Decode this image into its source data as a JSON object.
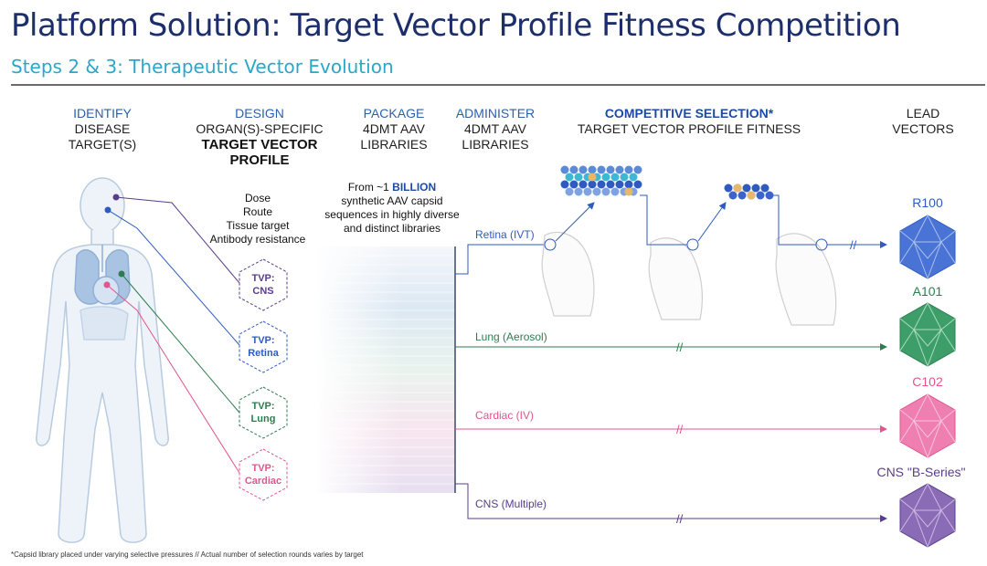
{
  "title": "Platform Solution: Target Vector Profile Fitness Competition",
  "subtitle": "Steps 2 & 3: Therapeutic Vector Evolution",
  "columns": {
    "identify": {
      "line1": "IDENTIFY",
      "line2": "DISEASE",
      "line3": "TARGET(S)"
    },
    "design": {
      "line1": "DESIGN",
      "line2": "ORGAN(S)-SPECIFIC",
      "line3": "TARGET VECTOR",
      "line4": "PROFILE"
    },
    "package": {
      "line1": "PACKAGE",
      "line2": "4DMT AAV",
      "line3": "LIBRARIES"
    },
    "administer": {
      "line1": "ADMINISTER",
      "line2": "4DMT AAV",
      "line3": "LIBRARIES"
    },
    "selection": {
      "line1": "COMPETITIVE SELECTION*",
      "line2": "TARGET VECTOR PROFILE FITNESS"
    },
    "lead": {
      "line1": "LEAD",
      "line2": "VECTORS"
    }
  },
  "design_criteria": [
    "Dose",
    "Route",
    "Tissue target",
    "Antibody resistance"
  ],
  "library_text": {
    "prefix": "From ~1 ",
    "highlight": "BILLION",
    "line2": "synthetic AAV capsid",
    "line3": "sequences in highly diverse",
    "line4": "and distinct libraries"
  },
  "tvps": [
    {
      "line1": "TVP:",
      "line2": "CNS",
      "color": "#5a3d8c"
    },
    {
      "line1": "TVP:",
      "line2": "Retina",
      "color": "#2f5bc0"
    },
    {
      "line1": "TVP:",
      "line2": "Lung",
      "color": "#2e7d4f"
    },
    {
      "line1": "TVP:",
      "line2": "Cardiac",
      "color": "#e0568f"
    }
  ],
  "routes": [
    {
      "label": "Retina (IVT)",
      "color": "#2f5bc0"
    },
    {
      "label": "Lung (Aerosol)",
      "color": "#2e7d4f"
    },
    {
      "label": "Cardiac (IV)",
      "color": "#e0568f"
    },
    {
      "label": "CNS (Multiple)",
      "color": "#5a3d8c"
    }
  ],
  "vectors": [
    {
      "name": "R100",
      "color": "#2f5bc0",
      "fill": "#4a73d6"
    },
    {
      "name": "A101",
      "color": "#2e7d4f",
      "fill": "#3e9e6a"
    },
    {
      "name": "C102",
      "color": "#e0568f",
      "fill": "#ef7fb0"
    },
    {
      "name": "CNS \"B-Series\"",
      "color": "#5a3d8c",
      "fill": "#8a6bb5"
    }
  ],
  "footnote": "*Capsid library placed under varying selective pressures // Actual number of selection rounds varies by target"
}
